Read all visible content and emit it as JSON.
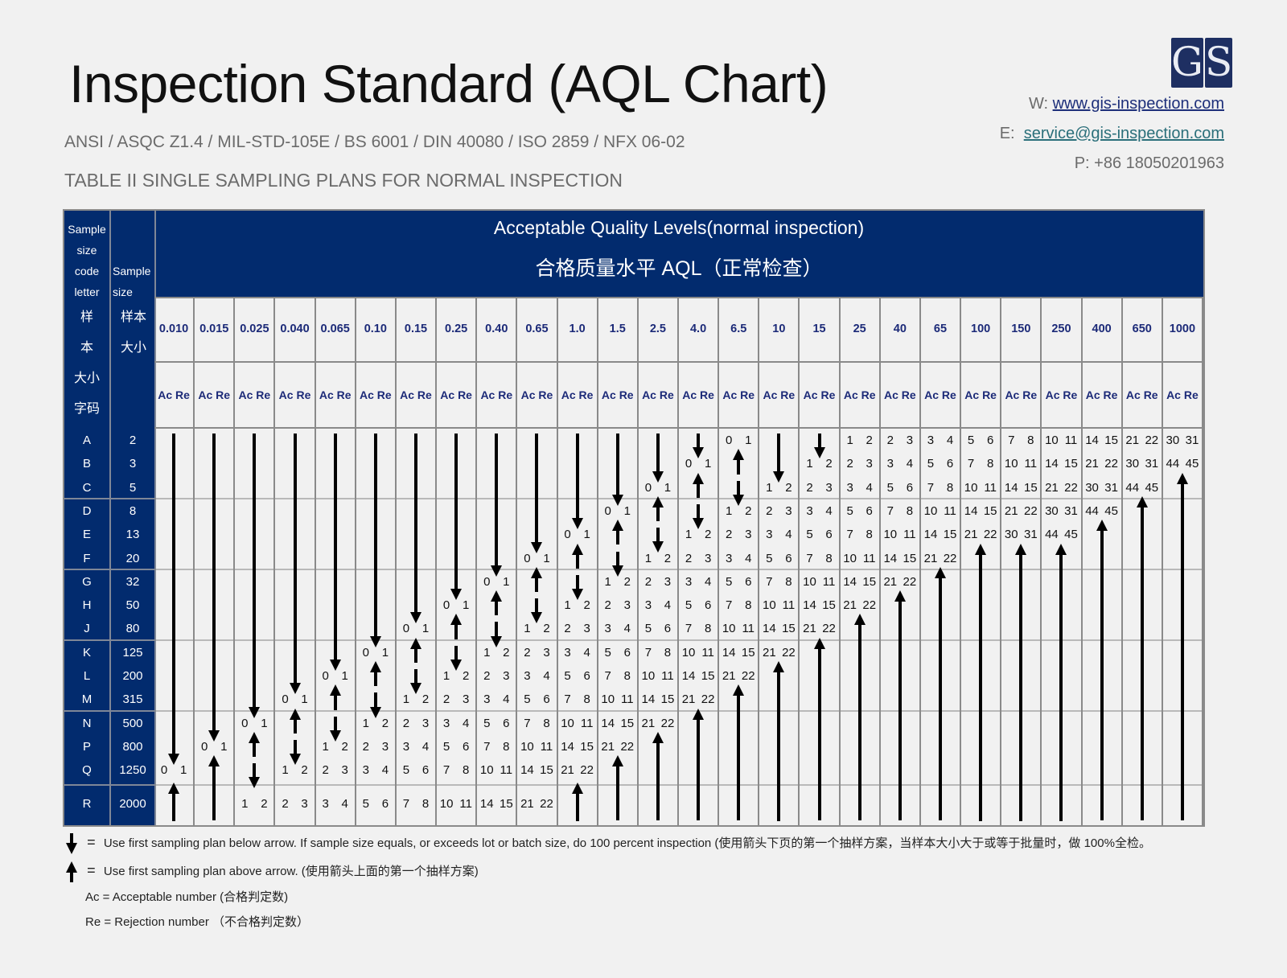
{
  "header": {
    "title": "Inspection Standard (AQL Chart)",
    "standards": "ANSI / ASQC Z1.4 / MIL-STD-105E / BS 6001 / DIN 40080 / ISO 2859 / NFX 06-02",
    "table_title": "TABLE II SINGLE SAMPLING PLANS FOR NORMAL INSPECTION"
  },
  "logo": {
    "letters": [
      "G",
      "S"
    ],
    "color": "#1e2f62"
  },
  "contact": {
    "web_label": "W:",
    "web": "www.gis-inspection.com",
    "email_label": "E:",
    "email": "service@gis-inspection.com",
    "phone": "P: +86 18050201963"
  },
  "table": {
    "header_color": "#022b6e",
    "aql_title_en": "Acceptable Quality Levels(normal inspection)",
    "aql_title_cn": "合格质量水平 AQL（正常检查）",
    "code_letter_header_en": "Sample size code letter",
    "code_letter_header_cn": [
      "样",
      "本",
      "大小",
      "字码"
    ],
    "sample_size_header_en": "Sample size",
    "sample_size_header_cn": [
      "样本",
      "大小"
    ],
    "acre_label": "Ac Re",
    "aql_levels": [
      "0.010",
      "0.015",
      "0.025",
      "0.040",
      "0.065",
      "0.10",
      "0.15",
      "0.25",
      "0.40",
      "0.65",
      "1.0",
      "1.5",
      "2.5",
      "4.0",
      "6.5",
      "10",
      "15",
      "25",
      "40",
      "65",
      "100",
      "150",
      "250",
      "400",
      "650",
      "1000"
    ],
    "rows": [
      {
        "letter": "A",
        "size": "2"
      },
      {
        "letter": "B",
        "size": "3"
      },
      {
        "letter": "C",
        "size": "5"
      },
      {
        "letter": "D",
        "size": "8"
      },
      {
        "letter": "E",
        "size": "13"
      },
      {
        "letter": "F",
        "size": "20"
      },
      {
        "letter": "G",
        "size": "32"
      },
      {
        "letter": "H",
        "size": "50"
      },
      {
        "letter": "J",
        "size": "80"
      },
      {
        "letter": "K",
        "size": "125"
      },
      {
        "letter": "L",
        "size": "200"
      },
      {
        "letter": "M",
        "size": "315"
      },
      {
        "letter": "N",
        "size": "500"
      },
      {
        "letter": "P",
        "size": "800"
      },
      {
        "letter": "Q",
        "size": "1250"
      },
      {
        "letter": "R",
        "size": "2000"
      }
    ]
  },
  "chart_data": {
    "type": "table",
    "title": "TABLE II SINGLE SAMPLING PLANS FOR NORMAL INSPECTION",
    "columns": [
      "0.010",
      "0.015",
      "0.025",
      "0.040",
      "0.065",
      "0.10",
      "0.15",
      "0.25",
      "0.40",
      "0.65",
      "1.0",
      "1.5",
      "2.5",
      "4.0",
      "6.5",
      "10",
      "15",
      "25",
      "40",
      "65",
      "100",
      "150",
      "250",
      "400",
      "650",
      "1000"
    ],
    "row_labels": [
      "A",
      "B",
      "C",
      "D",
      "E",
      "F",
      "G",
      "H",
      "J",
      "K",
      "L",
      "M",
      "N",
      "P",
      "Q",
      "R"
    ],
    "sample_sizes": [
      2,
      3,
      5,
      8,
      13,
      20,
      32,
      50,
      80,
      125,
      200,
      315,
      500,
      800,
      1250,
      2000
    ],
    "legend": {
      "D": "use first plan below arrow",
      "U": "use first plan above arrow",
      "pair": "Ac Re"
    },
    "cells": [
      [
        "D",
        "D",
        "D",
        "D",
        "D",
        "D",
        "D",
        "D",
        "D",
        "D",
        "D",
        "D",
        "D",
        "D",
        "0 1",
        "D",
        "D",
        "1 2",
        "2 3",
        "3 4",
        "5 6",
        "7 8",
        "10 11",
        "14 15",
        "21 22",
        "30 31"
      ],
      [
        "D",
        "D",
        "D",
        "D",
        "D",
        "D",
        "D",
        "D",
        "D",
        "D",
        "D",
        "D",
        "D",
        "0 1",
        "U",
        "D",
        "1 2",
        "2 3",
        "3 4",
        "5 6",
        "7 8",
        "10 11",
        "14 15",
        "21 22",
        "30 31",
        "44 45"
      ],
      [
        "D",
        "D",
        "D",
        "D",
        "D",
        "D",
        "D",
        "D",
        "D",
        "D",
        "D",
        "D",
        "0 1",
        "U",
        "D",
        "1 2",
        "2 3",
        "3 4",
        "5 6",
        "7 8",
        "10 11",
        "14 15",
        "21 22",
        "30 31",
        "44 45",
        "U"
      ],
      [
        "D",
        "D",
        "D",
        "D",
        "D",
        "D",
        "D",
        "D",
        "D",
        "D",
        "D",
        "0 1",
        "U",
        "D",
        "1 2",
        "2 3",
        "3 4",
        "5 6",
        "7 8",
        "10 11",
        "14 15",
        "21 22",
        "30 31",
        "44 45",
        "U",
        "U"
      ],
      [
        "D",
        "D",
        "D",
        "D",
        "D",
        "D",
        "D",
        "D",
        "D",
        "D",
        "0 1",
        "U",
        "D",
        "1 2",
        "2 3",
        "3 4",
        "5 6",
        "7 8",
        "10 11",
        "14 15",
        "21 22",
        "30 31",
        "44 45",
        "U",
        "U",
        "U"
      ],
      [
        "D",
        "D",
        "D",
        "D",
        "D",
        "D",
        "D",
        "D",
        "D",
        "0 1",
        "U",
        "D",
        "1 2",
        "2 3",
        "3 4",
        "5 6",
        "7 8",
        "10 11",
        "14 15",
        "21 22",
        "U",
        "U",
        "U",
        "U",
        "U",
        "U"
      ],
      [
        "D",
        "D",
        "D",
        "D",
        "D",
        "D",
        "D",
        "D",
        "0 1",
        "U",
        "D",
        "1 2",
        "2 3",
        "3 4",
        "5 6",
        "7 8",
        "10 11",
        "14 15",
        "21 22",
        "U",
        "U",
        "U",
        "U",
        "U",
        "U",
        "U"
      ],
      [
        "D",
        "D",
        "D",
        "D",
        "D",
        "D",
        "D",
        "0 1",
        "U",
        "D",
        "1 2",
        "2 3",
        "3 4",
        "5 6",
        "7 8",
        "10 11",
        "14 15",
        "21 22",
        "U",
        "U",
        "U",
        "U",
        "U",
        "U",
        "U",
        "U"
      ],
      [
        "D",
        "D",
        "D",
        "D",
        "D",
        "D",
        "0 1",
        "U",
        "D",
        "1 2",
        "2 3",
        "3 4",
        "5 6",
        "7 8",
        "10 11",
        "14 15",
        "21 22",
        "U",
        "U",
        "U",
        "U",
        "U",
        "U",
        "U",
        "U",
        "U"
      ],
      [
        "D",
        "D",
        "D",
        "D",
        "D",
        "0 1",
        "U",
        "D",
        "1 2",
        "2 3",
        "3 4",
        "5 6",
        "7 8",
        "10 11",
        "14 15",
        "21 22",
        "U",
        "U",
        "U",
        "U",
        "U",
        "U",
        "U",
        "U",
        "U",
        "U"
      ],
      [
        "D",
        "D",
        "D",
        "D",
        "0 1",
        "U",
        "D",
        "1 2",
        "2 3",
        "3 4",
        "5 6",
        "7 8",
        "10 11",
        "14 15",
        "21 22",
        "U",
        "U",
        "U",
        "U",
        "U",
        "U",
        "U",
        "U",
        "U",
        "U",
        "U"
      ],
      [
        "D",
        "D",
        "D",
        "0 1",
        "U",
        "D",
        "1 2",
        "2 3",
        "3 4",
        "5 6",
        "7 8",
        "10 11",
        "14 15",
        "21 22",
        "U",
        "U",
        "U",
        "U",
        "U",
        "U",
        "U",
        "U",
        "U",
        "U",
        "U",
        "U"
      ],
      [
        "D",
        "D",
        "0 1",
        "U",
        "D",
        "1 2",
        "2 3",
        "3 4",
        "5 6",
        "7 8",
        "10 11",
        "14 15",
        "21 22",
        "U",
        "U",
        "U",
        "U",
        "U",
        "U",
        "U",
        "U",
        "U",
        "U",
        "U",
        "U",
        "U"
      ],
      [
        "D",
        "0 1",
        "U",
        "D",
        "1 2",
        "2 3",
        "3 4",
        "5 6",
        "7 8",
        "10 11",
        "14 15",
        "21 22",
        "U",
        "U",
        "U",
        "U",
        "U",
        "U",
        "U",
        "U",
        "U",
        "U",
        "U",
        "U",
        "U",
        "U"
      ],
      [
        "0 1",
        "U",
        "D",
        "1 2",
        "2 3",
        "3 4",
        "5 6",
        "7 8",
        "10 11",
        "14 15",
        "21 22",
        "U",
        "U",
        "U",
        "U",
        "U",
        "U",
        "U",
        "U",
        "U",
        "U",
        "U",
        "U",
        "U",
        "U",
        "U"
      ],
      [
        "U",
        "U",
        "1 2",
        "2 3",
        "3 4",
        "5 6",
        "7 8",
        "10 11",
        "14 15",
        "21 22",
        "U",
        "U",
        "U",
        "U",
        "U",
        "U",
        "U",
        "U",
        "U",
        "U",
        "U",
        "U",
        "U",
        "U",
        "U",
        "U"
      ]
    ]
  },
  "legend": {
    "down_text": "Use first sampling plan below arrow. If sample size equals, or exceeds lot or batch size, do 100 percent inspection (使用箭头下页的第一个抽样方案，当样本大小大于或等于批量时，做 100%全检。",
    "up_text": "Use first sampling plan above arrow. (使用箭头上面的第一个抽样方案)",
    "equals": "=",
    "ac_text": "Ac = Acceptable number (合格判定数)",
    "re_text": "Re = Rejection number （不合格判定数）"
  }
}
